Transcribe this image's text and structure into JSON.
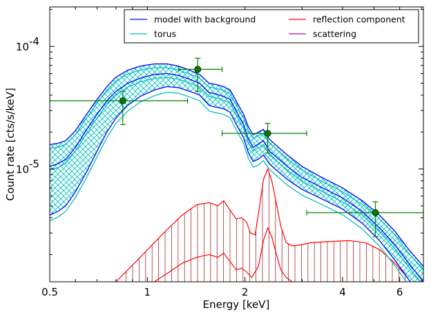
{
  "chart_data": {
    "type": "line",
    "xlabel": "Energy [keV]",
    "ylabel": "Count rate [cts/s/keV]",
    "x_scale": "log",
    "y_scale": "log",
    "xlim": [
      0.5,
      7.1
    ],
    "ylim": [
      1.2e-06,
      0.00021
    ],
    "grid": false,
    "legend_position": "top-right",
    "x_ticks": [
      {
        "value": 0.5,
        "label": "0.5"
      },
      {
        "value": 1,
        "label": "1"
      },
      {
        "value": 2,
        "label": "2"
      },
      {
        "value": 4,
        "label": "4"
      },
      {
        "value": 6,
        "label": "6"
      }
    ],
    "y_ticks": [
      {
        "value": 0.0001,
        "base": "10",
        "exp": "-4"
      },
      {
        "value": 1e-05,
        "base": "10",
        "exp": "-5"
      }
    ],
    "legend": [
      {
        "label": "model with background",
        "color": "#0000ff"
      },
      {
        "label": "torus",
        "color": "#00bfbf"
      },
      {
        "label": "reflection component",
        "color": "#ff0000"
      },
      {
        "label": "scattering",
        "color": "#bf00bf"
      }
    ],
    "series": [
      {
        "name": "model with background",
        "color": "#0000ff",
        "x": [
          0.5,
          0.53,
          0.56,
          0.6,
          0.65,
          0.7,
          0.75,
          0.8,
          0.87,
          0.95,
          1.05,
          1.15,
          1.25,
          1.35,
          1.45,
          1.55,
          1.62,
          1.72,
          1.8,
          1.9,
          1.98,
          2.05,
          2.12,
          2.2,
          2.28,
          2.38,
          2.5,
          2.7,
          3.0,
          3.4,
          4.0,
          4.6,
          5.2,
          5.8,
          6.4,
          7.1
        ],
        "y": [
          1.05e-05,
          1.1e-05,
          1.2e-05,
          1.5e-05,
          2.1e-05,
          2.8e-05,
          3.6e-05,
          4.3e-05,
          5e-05,
          5.5e-05,
          5.9e-05,
          6e-05,
          5.8e-05,
          5.4e-05,
          5e-05,
          4.2e-05,
          4.1e-05,
          3.9e-05,
          3.7e-05,
          2.8e-05,
          2.3e-05,
          1.75e-05,
          1.5e-05,
          1.6e-05,
          1.7e-05,
          1.4e-05,
          1.25e-05,
          1.05e-05,
          8.5e-06,
          7.2e-06,
          5.8e-06,
          4.5e-06,
          3.3e-06,
          2.4e-06,
          1.7e-06,
          1.2e-06
        ],
        "upper": [
          1.58e-05,
          1.62e-05,
          1.7e-05,
          2.05e-05,
          2.8e-05,
          3.7e-05,
          4.7e-05,
          5.6e-05,
          6.4e-05,
          6.9e-05,
          7.2e-05,
          7.2e-05,
          6.9e-05,
          6.4e-05,
          5.9e-05,
          5e-05,
          4.9e-05,
          4.7e-05,
          4.4e-05,
          3.4e-05,
          2.8e-05,
          2.2e-05,
          1.9e-05,
          2e-05,
          2.1e-05,
          1.75e-05,
          1.55e-05,
          1.3e-05,
          1.05e-05,
          8.7e-06,
          7e-06,
          5.5e-06,
          4.2e-06,
          3.1e-06,
          2.2e-06,
          1.6e-06
        ],
        "lower": [
          4.2e-06,
          4.5e-06,
          5e-06,
          6.5e-06,
          9.5e-06,
          1.4e-05,
          2e-05,
          2.6e-05,
          3.3e-05,
          3.9e-05,
          4.4e-05,
          4.7e-05,
          4.6e-05,
          4.3e-05,
          4e-05,
          3.3e-05,
          3.2e-05,
          3.1e-05,
          2.9e-05,
          2.2e-05,
          1.8e-05,
          1.35e-05,
          1.15e-05,
          1.2e-05,
          1.3e-05,
          1.1e-05,
          9.8e-06,
          8.2e-06,
          6.8e-06,
          5.8e-06,
          4.7e-06,
          3.6e-06,
          2.6e-06,
          1.8e-06,
          1.25e-06,
          8e-07
        ]
      },
      {
        "name": "reflection component",
        "color": "#ff0000",
        "x": [
          0.8,
          0.88,
          0.95,
          1.05,
          1.15,
          1.28,
          1.42,
          1.55,
          1.65,
          1.72,
          1.8,
          1.88,
          1.95,
          2.02,
          2.08,
          2.15,
          2.22,
          2.28,
          2.35,
          2.42,
          2.5,
          2.58,
          2.68,
          2.8,
          2.95,
          3.2,
          3.6,
          4.2,
          4.7,
          5.2,
          5.8,
          6.5,
          7.1
        ],
        "y": [
          1.2e-06,
          1.55e-06,
          1.9e-06,
          2.5e-06,
          3.2e-06,
          4.2e-06,
          5.1e-06,
          5.3e-06,
          5e-06,
          5.5e-06,
          4.6e-06,
          3.9e-06,
          4e-06,
          3.7e-06,
          3e-06,
          2.9e-06,
          5e-06,
          8.2e-06,
          1e-05,
          8e-06,
          5.2e-06,
          3.4e-06,
          2.5e-06,
          2.35e-06,
          2.4e-06,
          2.5e-06,
          2.55e-06,
          2.6e-06,
          2.5e-06,
          2.2e-06,
          1.7e-06,
          1.2e-06,
          8.5e-07
        ]
      },
      {
        "name": "reflection component lower bound",
        "color": "#ff0000",
        "x": [
          1.05,
          1.15,
          1.28,
          1.42,
          1.55,
          1.65,
          1.72,
          1.8,
          1.88,
          1.95,
          2.02,
          2.1,
          2.2,
          2.28,
          2.35,
          2.42,
          2.5,
          2.58,
          2.68,
          2.8
        ],
        "y": [
          1.2e-06,
          1.4e-06,
          1.7e-06,
          1.9e-06,
          2e-06,
          1.9e-06,
          2.05e-06,
          1.75e-06,
          1.5e-06,
          1.55e-06,
          1.45e-06,
          1.3e-06,
          1.6e-06,
          2.6e-06,
          3.3e-06,
          2.8e-06,
          2e-06,
          1.5e-06,
          1.3e-06,
          1.2e-06
        ]
      }
    ],
    "data_points": [
      {
        "x": 0.84,
        "y": 3.6e-05,
        "xerr": [
          0.5,
          1.33
        ],
        "yerr": [
          2.3e-05,
          4.3e-05
        ]
      },
      {
        "x": 1.43,
        "y": 6.5e-05,
        "xerr": [
          1.25,
          1.7
        ],
        "yerr": [
          4.3e-05,
          8e-05
        ]
      },
      {
        "x": 2.35,
        "y": 1.95e-05,
        "xerr": [
          1.7,
          3.1
        ],
        "yerr": [
          1.35e-05,
          2.35e-05
        ]
      },
      {
        "x": 5.05,
        "y": 4.4e-06,
        "xerr": [
          3.1,
          7.1
        ],
        "yerr": [
          2.8e-06,
          5.4e-06
        ]
      }
    ]
  }
}
